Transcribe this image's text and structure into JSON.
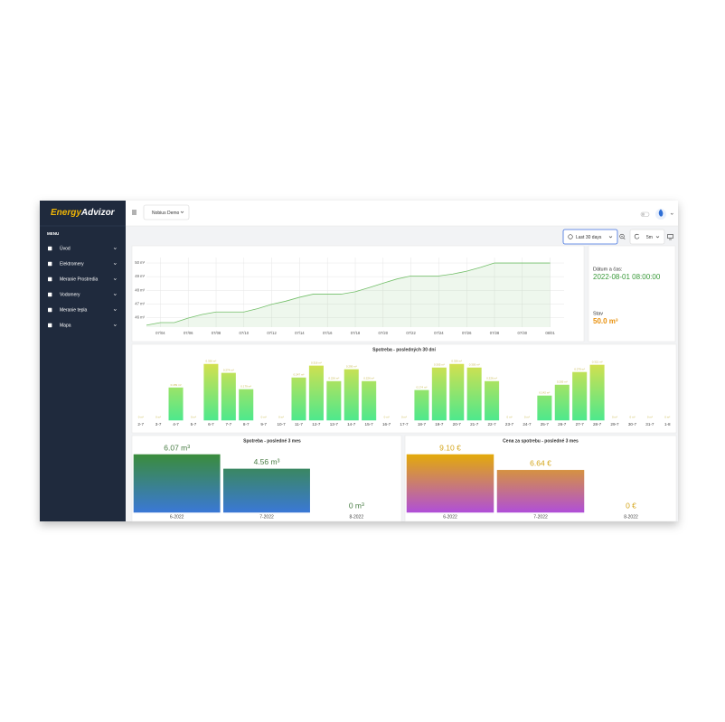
{
  "app": {
    "logo": {
      "first": "Energy",
      "second": "Advizor"
    },
    "menu_title": "MENU",
    "menu": [
      "Úvod",
      "Elektromery",
      "Meranie Prostredia",
      "Vodomery",
      "Meranie tepla",
      "Mapa"
    ],
    "organization": "Nobius Demo",
    "time_range": "Last 30 days",
    "refresh": "5m"
  },
  "stat": {
    "date_label": "Dátum a čas:",
    "date": "2022-08-01 08:00:00",
    "state_label": "Stav",
    "state": "50.0 m³"
  },
  "chart_data": [
    {
      "type": "line",
      "area": true,
      "color": "#73bf69",
      "grid": true,
      "x": [
        "07/03",
        "07/04",
        "07/05",
        "07/06",
        "07/07",
        "07/08",
        "07/09",
        "07/10",
        "07/11",
        "07/12",
        "07/13",
        "07/14",
        "07/15",
        "07/16",
        "07/17",
        "07/18",
        "07/19",
        "07/20",
        "07/21",
        "07/22",
        "07/23",
        "07/24",
        "07/25",
        "07/26",
        "07/27",
        "07/28",
        "07/29",
        "07/30",
        "07/31",
        "08/01"
      ],
      "values": [
        45.44,
        45.63,
        45.63,
        45.96,
        46.23,
        46.41,
        46.41,
        46.41,
        46.66,
        46.97,
        47.2,
        47.49,
        47.72,
        47.72,
        47.72,
        47.89,
        48.2,
        48.52,
        48.83,
        49.05,
        49.05,
        49.05,
        49.19,
        49.4,
        49.68,
        50.0,
        50.0,
        50.0,
        50.0,
        50.0
      ],
      "xlim": [
        "07/03",
        "08/02"
      ],
      "xticks": [
        "07/04",
        "07/06",
        "07/08",
        "07/10",
        "07/12",
        "07/14",
        "07/16",
        "07/18",
        "07/20",
        "07/22",
        "07/24",
        "07/26",
        "07/28",
        "07/30",
        "08/01"
      ],
      "ylim": [
        45.3,
        50.4
      ],
      "yticks": [
        {
          "value": 46,
          "label": "46 m³"
        },
        {
          "value": 47,
          "label": "47 m³"
        },
        {
          "value": 48,
          "label": "48 m³"
        },
        {
          "value": 49,
          "label": "49 m³"
        },
        {
          "value": 50,
          "label": "50 m³"
        }
      ]
    },
    {
      "type": "bar",
      "title": "Spotreba - posledných 30 dní",
      "gradient": [
        "#d2e04e",
        "#4ee88c"
      ],
      "label_color": "#c9b94f",
      "categories": [
        "2-7",
        "3-7",
        "4-7",
        "5-7",
        "6-7",
        "7-7",
        "8-7",
        "9-7",
        "10-7",
        "11-7",
        "12-7",
        "13-7",
        "14-7",
        "15-7",
        "16-7",
        "17-7",
        "18-7",
        "19-7",
        "20-7",
        "21-7",
        "22-7",
        "23-7",
        "24-7",
        "25-7",
        "26-7",
        "27-7",
        "28-7",
        "29-7",
        "30-7",
        "31-7",
        "1-8"
      ],
      "values": [
        0,
        0,
        0.189,
        0,
        0.326,
        0.274,
        0.179,
        0,
        0,
        0.247,
        0.316,
        0.226,
        0.295,
        0.226,
        0,
        0,
        0.174,
        0.305,
        0.326,
        0.305,
        0.226,
        0,
        0,
        0.142,
        0.205,
        0.279,
        0.321,
        0,
        0,
        0,
        0
      ],
      "value_labels": [
        "0 m³",
        "0 m³",
        "0.189 m³",
        "0 m³",
        "0.326 m³",
        "0.274 m³",
        "0.179 m³",
        "0 m³",
        "0 m³",
        "0.247 m³",
        "0.316 m³",
        "0.226 m³",
        "0.295 m³",
        "0.226 m³",
        "0 m³",
        "0 m³",
        "0.174 m³",
        "0.305 m³",
        "0.326 m³",
        "0.305 m³",
        "0.226 m³",
        "0 m³",
        "0 m³",
        "0.142 m³",
        "0.205 m³",
        "0.279 m³",
        "0.321 m³",
        "0 m³",
        "0 m³",
        "0 m³",
        "0 m³"
      ]
    },
    {
      "type": "bar",
      "title": "Spotreba - posledné 3 mes",
      "gradient": [
        "#3a8c3c",
        "#3a78d6"
      ],
      "label_color": "#4a7d45",
      "categories": [
        "6-2022",
        "7-2022",
        "8-2022"
      ],
      "values": [
        6.07,
        4.56,
        0
      ],
      "value_labels": [
        "6.07 m³",
        "4.56 m³",
        "0 m³"
      ]
    },
    {
      "type": "bar",
      "title": "Cena za spotrebu - posledné 3 mes",
      "gradient": [
        "#e3aa0a",
        "#b04fd8"
      ],
      "label_color": "#d4a51a",
      "categories": [
        "6-2022",
        "7-2022",
        "8-2022"
      ],
      "values": [
        9.1,
        6.64,
        0
      ],
      "value_labels": [
        "9.10 €",
        "6.64 €",
        "0 €"
      ]
    }
  ]
}
